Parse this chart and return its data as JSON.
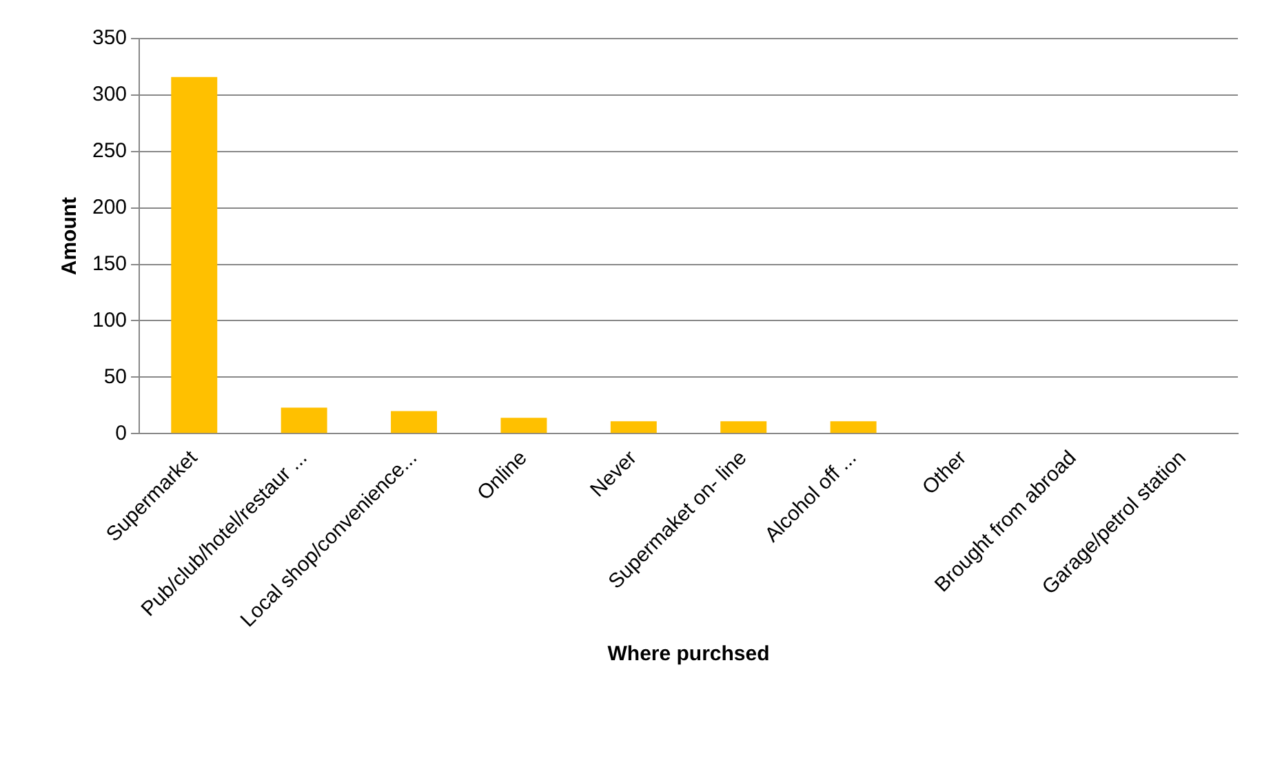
{
  "chart_data": {
    "type": "bar",
    "xlabel": "Where purchsed",
    "ylabel": "Amount",
    "categories": [
      "Supermarket",
      "Pub/club/hotel/restaur ...",
      "Local shop/convenience...",
      "Online",
      "Never",
      "Supermaket on- line",
      "Alcohol off ...",
      "Other",
      "Brought from abroad",
      "Garage/petrol station"
    ],
    "values": [
      316,
      23,
      20,
      14,
      11,
      11,
      11,
      0,
      0,
      0
    ],
    "color": "#ffc000",
    "ylim": [
      0,
      350
    ],
    "yticks": [
      0,
      50,
      100,
      150,
      200,
      250,
      300,
      350
    ],
    "grid": "y"
  }
}
